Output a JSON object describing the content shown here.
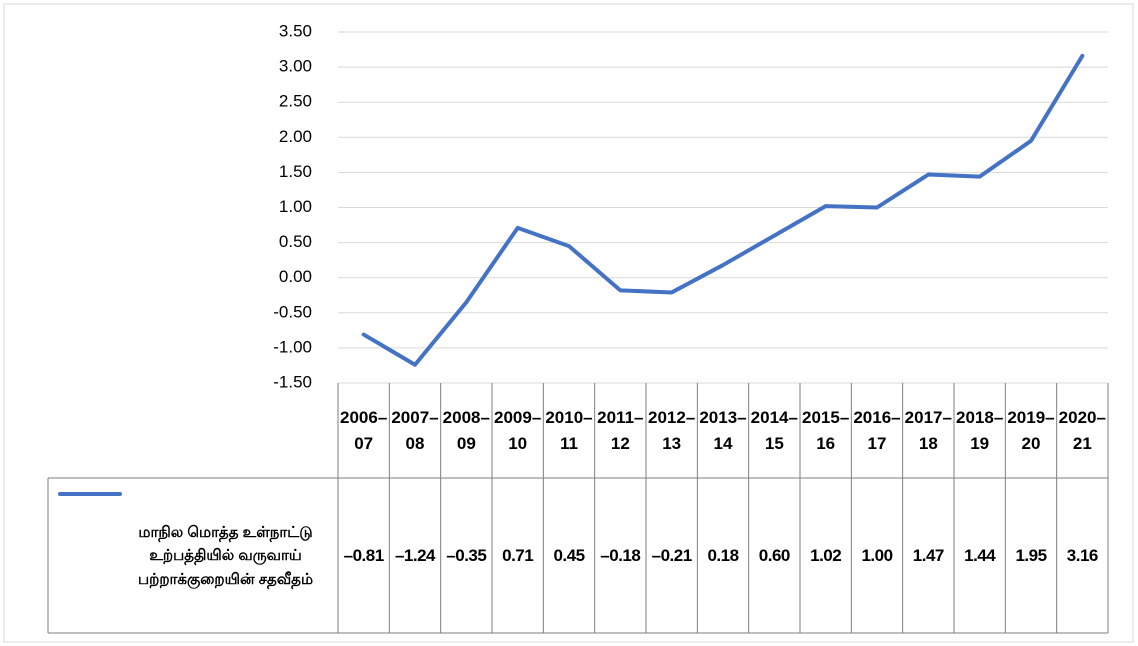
{
  "chart_data": {
    "type": "line",
    "categories": [
      "2006–07",
      "2007–08",
      "2008–09",
      "2009–10",
      "2010–11",
      "2011–12",
      "2012–13",
      "2013–14",
      "2014–15",
      "2015–16",
      "2016–17",
      "2017–18",
      "2018–19",
      "2019–20",
      "2020–21"
    ],
    "series": [
      {
        "name": "மாநில மொத்த உள்நாட்டு உற்பத்தியில் வருவாய் பற்றாக்குறையின் சதவீதம்",
        "color": "#4472c4",
        "values": [
          -0.81,
          -1.24,
          -0.35,
          0.71,
          0.45,
          -0.18,
          -0.21,
          0.18,
          0.6,
          1.02,
          1.0,
          1.47,
          1.44,
          1.95,
          3.16
        ],
        "value_labels": [
          "–0.81",
          "–1.24",
          "–0.35",
          "0.71",
          "0.45",
          "–0.18",
          "–0.21",
          "0.18",
          "0.60",
          "1.02",
          "1.00",
          "1.47",
          "1.44",
          "1.95",
          "3.16"
        ]
      }
    ],
    "ylim": [
      -1.5,
      3.5
    ],
    "yticks": [
      {
        "value": -1.5,
        "label": "-1.50"
      },
      {
        "value": -1,
        "label": "-1.00"
      },
      {
        "value": -0.5,
        "label": "-0.50"
      },
      {
        "value": 0,
        "label": "0.00"
      },
      {
        "value": 0.5,
        "label": "0.50"
      },
      {
        "value": 1,
        "label": "1.00"
      },
      {
        "value": 1.5,
        "label": "1.50"
      },
      {
        "value": 2,
        "label": "2.00"
      },
      {
        "value": 2.5,
        "label": "2.50"
      },
      {
        "value": 3,
        "label": "3.00"
      },
      {
        "value": 3.5,
        "label": "3.50"
      }
    ],
    "grid": true,
    "data_table": true
  }
}
